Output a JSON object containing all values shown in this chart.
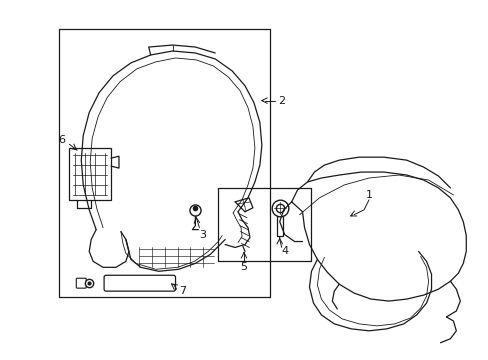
{
  "bg_color": "#ffffff",
  "line_color": "#1a1a1a",
  "lw": 0.9,
  "tlw": 0.6,
  "label_fs": 8,
  "figsize": [
    4.89,
    3.6
  ],
  "dpi": 100
}
